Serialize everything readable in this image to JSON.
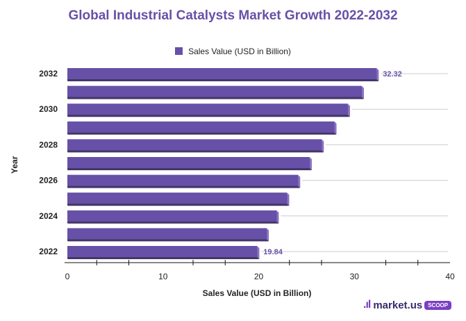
{
  "chart_data": {
    "type": "bar",
    "orientation": "horizontal",
    "title": "Global Industrial Catalysts Market Growth 2022-2032",
    "legend": [
      "Sales Value (USD in Billion)"
    ],
    "legend_position": "top",
    "xlabel": "Sales Value (USD in Billion)",
    "ylabel": "Year",
    "categories": [
      "2022",
      "2023",
      "2024",
      "2025",
      "2026",
      "2027",
      "2028",
      "2029",
      "2030",
      "2031",
      "2032"
    ],
    "category_tick_labels": [
      "2022",
      "",
      "2024",
      "",
      "2026",
      "",
      "2028",
      "",
      "2030",
      "",
      "2032"
    ],
    "series": [
      {
        "name": "Sales Value (USD in Billion)",
        "values": [
          19.84,
          20.83,
          21.87,
          22.96,
          24.11,
          25.32,
          26.58,
          27.91,
          29.31,
          30.77,
          32.32
        ]
      }
    ],
    "data_labels": {
      "2022": "19.84",
      "2032": "32.32"
    },
    "xlim": [
      0,
      40
    ],
    "x_ticks": [
      0,
      10,
      20,
      30,
      40
    ],
    "grid": true,
    "bar_color": "#6750a7",
    "bar_shadow_color": "#453668",
    "label_color": "#6750a7"
  },
  "branding": {
    "mark": ".ıl",
    "name": "market.us",
    "badge": "SCOOP"
  }
}
